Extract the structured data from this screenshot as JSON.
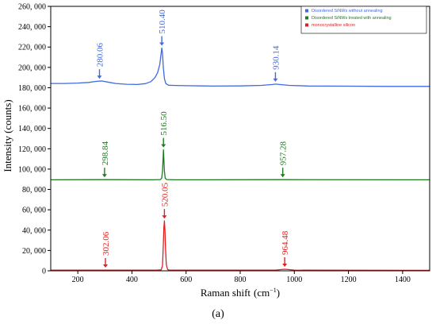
{
  "chart_data": {
    "type": "line",
    "xlabel_main": "Raman shift",
    "xlabel_unit": "(cm",
    "xlabel_sup": "−1",
    "xlabel_close": ")",
    "ylabel": "Intensity (counts)",
    "panel_label": "(a)",
    "xlim": [
      100,
      1500
    ],
    "ylim": [
      0,
      260000
    ],
    "x_ticks": [
      200,
      400,
      600,
      800,
      1000,
      1200,
      1400
    ],
    "y_ticks": [
      0,
      20000,
      40000,
      60000,
      80000,
      100000,
      120000,
      140000,
      160000,
      180000,
      200000,
      220000,
      240000,
      260000
    ],
    "y_tick_labels": [
      "0",
      "20, 000",
      "40, 000",
      "60, 000",
      "80, 000",
      "100, 000",
      "120, 000",
      "140, 000",
      "160, 000",
      "180, 000",
      "200, 000",
      "220, 000",
      "240, 000",
      "260, 000"
    ],
    "series": [
      {
        "name": "Disordered SiNWs without annealing",
        "color": "#4169e1",
        "baseline": 183500,
        "points": [
          [
            100,
            184200
          ],
          [
            150,
            184200
          ],
          [
            200,
            184600
          ],
          [
            240,
            185200
          ],
          [
            270,
            186300
          ],
          [
            290,
            186600
          ],
          [
            310,
            185600
          ],
          [
            340,
            184200
          ],
          [
            380,
            183400
          ],
          [
            420,
            183200
          ],
          [
            450,
            184000
          ],
          [
            470,
            186000
          ],
          [
            485,
            190000
          ],
          [
            495,
            195000
          ],
          [
            503,
            203000
          ],
          [
            507,
            212000
          ],
          [
            510.4,
            219000
          ],
          [
            513,
            214000
          ],
          [
            516,
            200000
          ],
          [
            520,
            189000
          ],
          [
            525,
            184200
          ],
          [
            535,
            182500
          ],
          [
            560,
            182200
          ],
          [
            600,
            182000
          ],
          [
            700,
            181600
          ],
          [
            800,
            181800
          ],
          [
            880,
            182300
          ],
          [
            920,
            183200
          ],
          [
            930.14,
            183600
          ],
          [
            945,
            183200
          ],
          [
            980,
            182300
          ],
          [
            1050,
            181700
          ],
          [
            1200,
            181500
          ],
          [
            1350,
            181300
          ],
          [
            1500,
            181300
          ]
        ],
        "peaks": [
          {
            "x": 280.06,
            "label": "280.06"
          },
          {
            "x": 510.4,
            "label": "510.40"
          },
          {
            "x": 930.14,
            "label": "930.14"
          }
        ]
      },
      {
        "name": "Disordered SiNWs  treated with annealing",
        "color": "#1e7b1e",
        "points": [
          [
            100,
            89500
          ],
          [
            298.84,
            89600
          ],
          [
            480,
            89500
          ],
          [
            505,
            89700
          ],
          [
            510,
            91000
          ],
          [
            513,
            98000
          ],
          [
            515,
            110000
          ],
          [
            516.5,
            119000
          ],
          [
            518,
            110000
          ],
          [
            520,
            98000
          ],
          [
            523,
            91000
          ],
          [
            528,
            89700
          ],
          [
            560,
            89500
          ],
          [
            957.28,
            89600
          ],
          [
            1500,
            89500
          ]
        ],
        "peaks": [
          {
            "x": 298.84,
            "label": "298.84"
          },
          {
            "x": 516.5,
            "label": "516.50"
          },
          {
            "x": 957.28,
            "label": "957.28"
          }
        ]
      },
      {
        "name": "monocrystalline silicon",
        "color": "#e02020",
        "points": [
          [
            100,
            600
          ],
          [
            300,
            700
          ],
          [
            302.06,
            800
          ],
          [
            305,
            700
          ],
          [
            490,
            600
          ],
          [
            508,
            900
          ],
          [
            513,
            5000
          ],
          [
            516,
            25000
          ],
          [
            518,
            42000
          ],
          [
            520.05,
            49000
          ],
          [
            522,
            40000
          ],
          [
            524,
            22000
          ],
          [
            527,
            6000
          ],
          [
            532,
            1200
          ],
          [
            540,
            600
          ],
          [
            930,
            600
          ],
          [
            945,
            1100
          ],
          [
            964.48,
            1600
          ],
          [
            985,
            1100
          ],
          [
            1000,
            600
          ],
          [
            1500,
            500
          ]
        ],
        "peaks": [
          {
            "x": 302.06,
            "label": "302.06"
          },
          {
            "x": 520.05,
            "label": "520.05"
          },
          {
            "x": 964.48,
            "label": "964.48"
          }
        ]
      }
    ],
    "legend_position": "top-right",
    "grid": false
  }
}
